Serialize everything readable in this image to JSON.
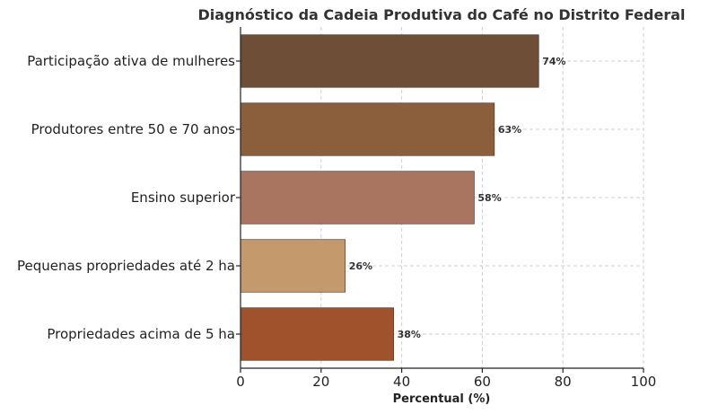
{
  "chart_data": {
    "type": "bar",
    "orientation": "horizontal",
    "title": "Diagnóstico da Cadeia Produtiva do Café no Distrito Federal",
    "xlabel": "Percentual (%)",
    "ylabel": "",
    "xlim": [
      0,
      100
    ],
    "xticks": [
      0,
      20,
      40,
      60,
      80,
      100
    ],
    "grid": true,
    "categories": [
      "Participação ativa de mulheres",
      "Produtores entre 50 e 70 anos",
      "Ensino superior",
      "Pequenas propriedades até 2 ha",
      "Propriedades acima de 5 ha"
    ],
    "values": [
      74,
      63,
      58,
      26,
      38
    ],
    "value_labels": [
      "74%",
      "63%",
      "58%",
      "26%",
      "38%"
    ],
    "colors": [
      "#6f4e37",
      "#8b5e3c",
      "#a97560",
      "#c49a6c",
      "#a0522d"
    ]
  }
}
